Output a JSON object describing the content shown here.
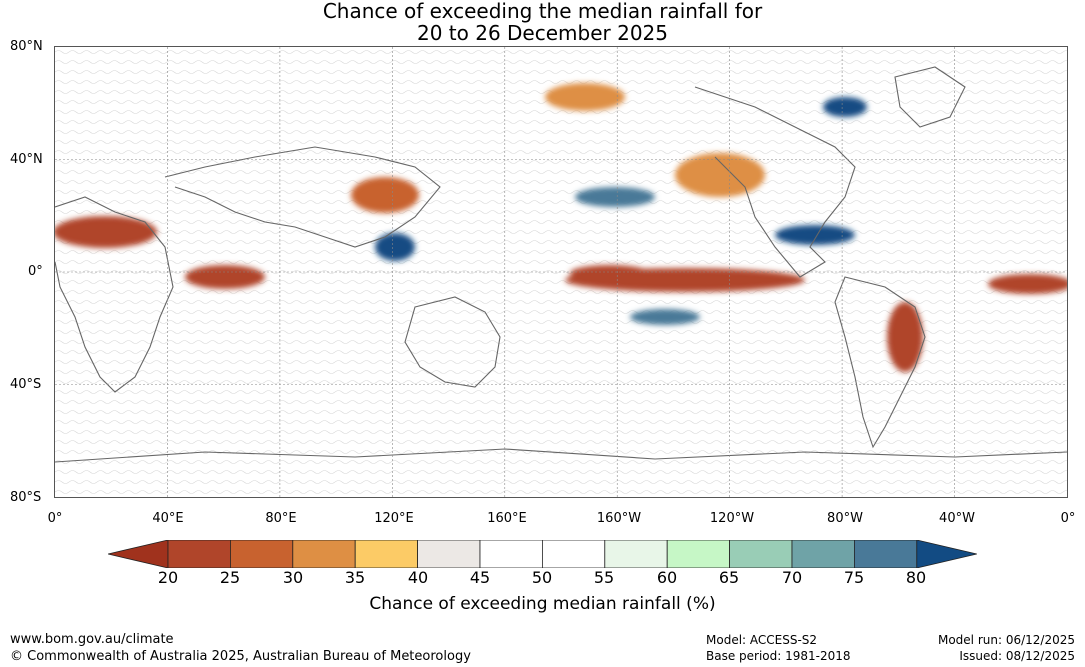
{
  "title": {
    "line1": "Chance of exceeding the median rainfall for",
    "line2": "20 to 26 December 2025"
  },
  "map": {
    "lat_labels": [
      "80°N",
      "40°N",
      "0°",
      "40°S",
      "80°S"
    ],
    "lon_labels": [
      "0°",
      "40°E",
      "80°E",
      "120°E",
      "160°E",
      "160°W",
      "120°W",
      "80°W",
      "40°W",
      "0°"
    ],
    "regions": [
      {
        "name": "north-africa-sahel-dry",
        "category": 20
      },
      {
        "name": "equatorial-pacific-dry",
        "category": 20
      },
      {
        "name": "south-america-east-coast-dry",
        "category": 20
      },
      {
        "name": "equatorial-atlantic-dry",
        "category": 20
      },
      {
        "name": "indian-ocean-dry",
        "category": 20
      },
      {
        "name": "north-pacific-dry",
        "category": 30
      },
      {
        "name": "china-dry",
        "category": 25
      },
      {
        "name": "maritime-continent-wet",
        "category": 80
      },
      {
        "name": "central-pacific-wet",
        "category": 75
      },
      {
        "name": "hudson-bay-wet",
        "category": 80
      },
      {
        "name": "gulf-of-mexico-wet",
        "category": 80
      }
    ]
  },
  "colorbar": {
    "ticks": [
      "20",
      "25",
      "30",
      "35",
      "40",
      "45",
      "50",
      "55",
      "60",
      "65",
      "70",
      "75",
      "80"
    ],
    "colors": [
      "#a0321d",
      "#b0452a",
      "#c8622f",
      "#de8f44",
      "#fccb66",
      "#ece8e5",
      "#ffffff",
      "#ffffff",
      "#e8f6e8",
      "#c6f7c6",
      "#99cdb6",
      "#6fa3a7",
      "#497998",
      "#124b83"
    ],
    "label": "Chance of exceeding median rainfall (%)"
  },
  "footer": {
    "url": "www.bom.gov.au/climate",
    "copyright": "© Commonwealth of Australia 2025, Australian Bureau of Meteorology",
    "model": "Model: ACCESS-S2",
    "base_period": "Base period: 1981-2018",
    "model_run": "Model run: 06/12/2025",
    "issued": "Issued: 08/12/2025"
  }
}
